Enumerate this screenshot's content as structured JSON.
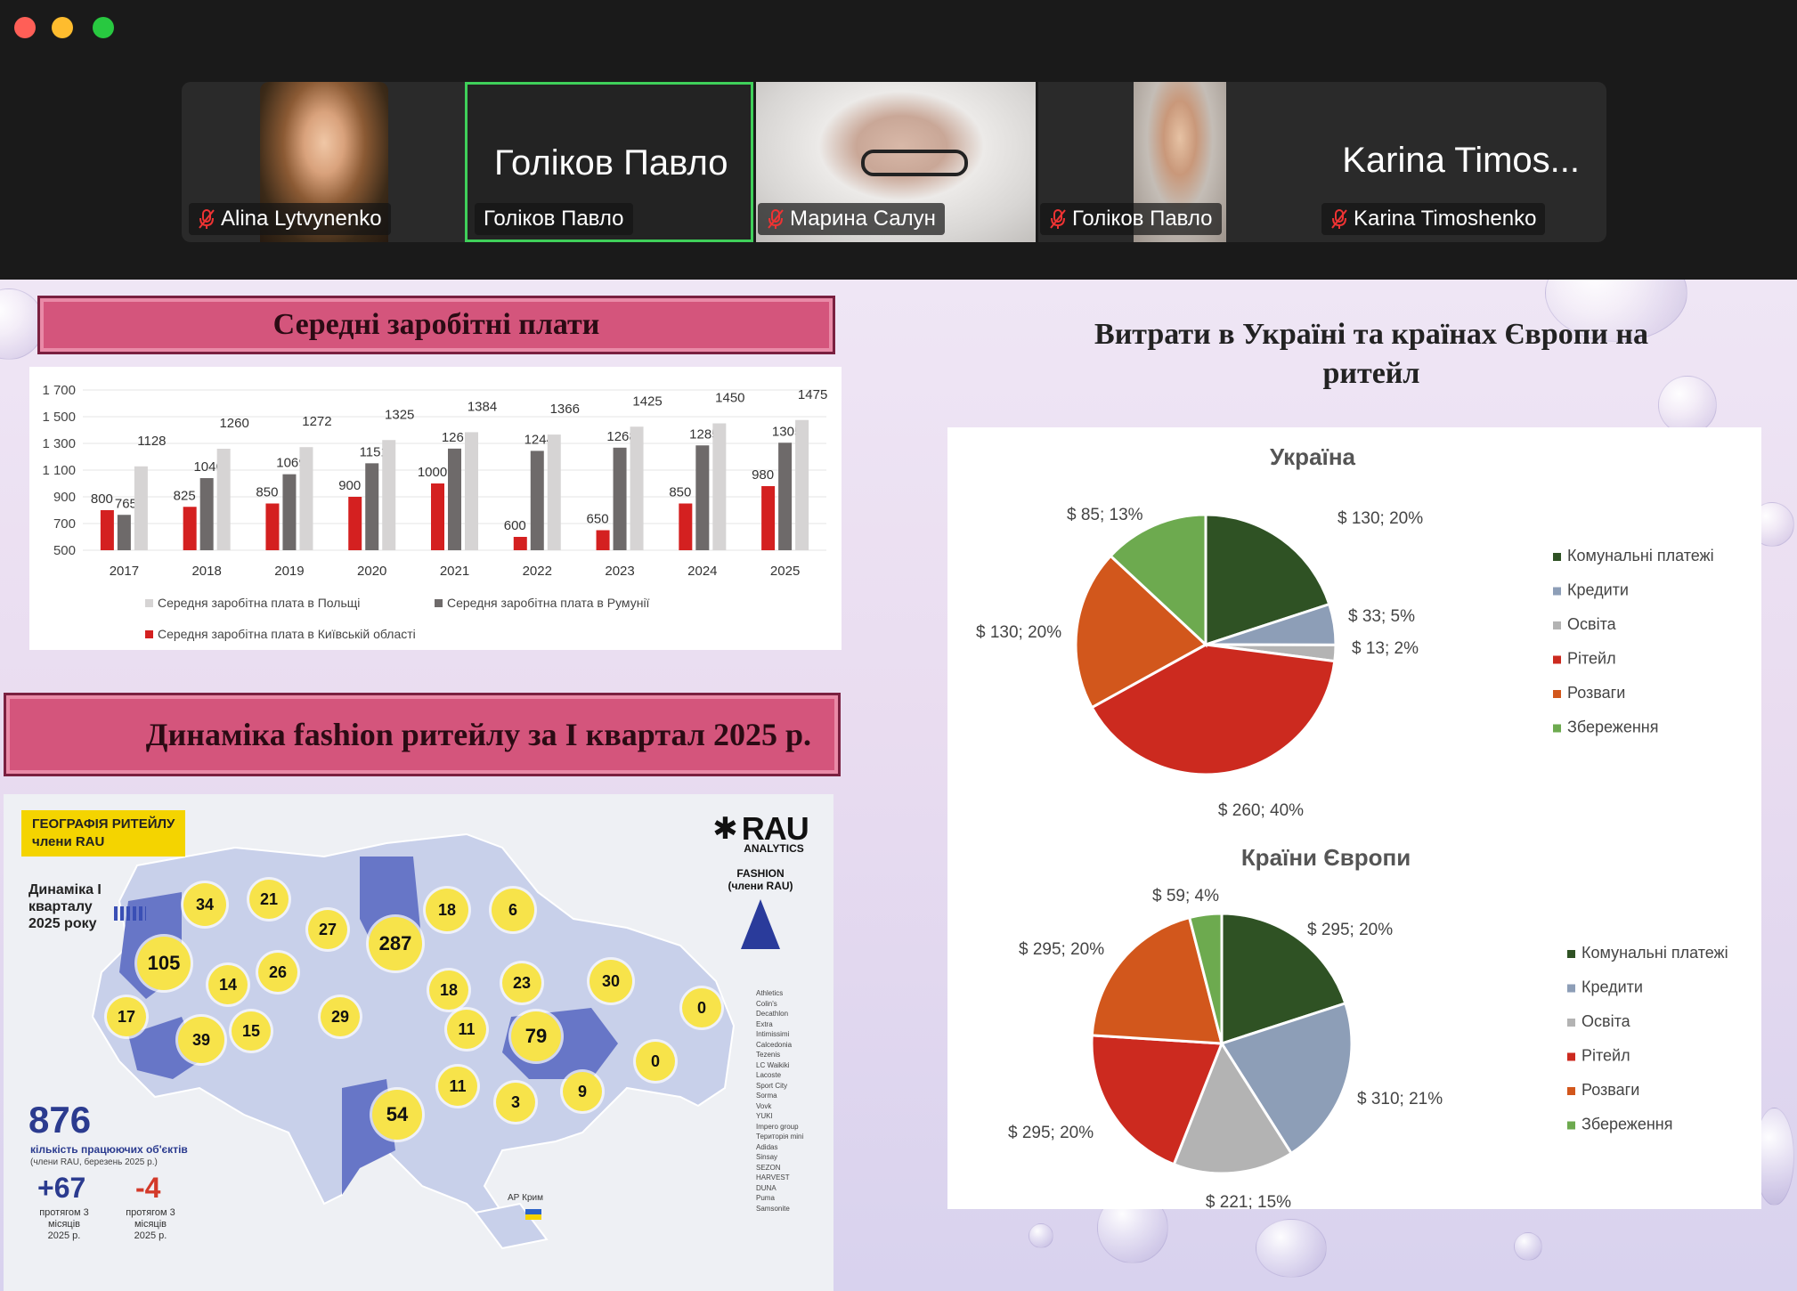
{
  "window": {
    "controls": {
      "close": "#ff5f57",
      "minimize": "#febc2e",
      "zoom": "#28c840"
    }
  },
  "participants": [
    {
      "name": "Alina Lytvynenko",
      "muted": true
    },
    {
      "name": "Голіков Павло",
      "muted": false,
      "active_speaker": true,
      "display_title": "Голіков Павло"
    },
    {
      "name": "Марина Салун",
      "muted": true
    },
    {
      "name": "Голіков Павло",
      "muted": true
    },
    {
      "name": "Karina Timoshenko",
      "muted": true,
      "display_title": "Karina Timos..."
    }
  ],
  "slide": {
    "salary_title": "Середні заробітні плати",
    "fashion_title": "Динаміка fashion ритейлу за І квартал 2025 р.",
    "retail_title": "Витрати в Україні та країнах Європи на ритейл"
  },
  "chart_data": [
    {
      "type": "bar",
      "title": "",
      "categories": [
        "2017",
        "2018",
        "2019",
        "2020",
        "2021",
        "2022",
        "2023",
        "2024",
        "2025"
      ],
      "series": [
        {
          "name": "Середня заробітна плата в Київській області",
          "color": "#d42020",
          "values": [
            800,
            825,
            850,
            900,
            1000,
            600,
            650,
            850,
            980
          ]
        },
        {
          "name": "Середня заробітна плата в Румунії",
          "color": "#6e6a6a",
          "values": [
            765,
            1040,
            1069,
            1151,
            1261,
            1244,
            1268,
            1285,
            1305
          ]
        },
        {
          "name": "Середня заробітна плата в Польщі",
          "color": "#d6d4d4",
          "values": [
            1128,
            1260,
            1272,
            1325,
            1384,
            1366,
            1425,
            1450,
            1475
          ]
        }
      ],
      "y_ticks": [
        "1 700",
        "1 500",
        "1 300",
        "1 100",
        "900",
        "700",
        "500"
      ],
      "ylim": [
        500,
        1700
      ],
      "legend_rows": [
        [
          "Середня заробітна плата в Польщі",
          "Середня заробітна плата в Румунії"
        ],
        [
          "Середня заробітна плата в Київській області"
        ]
      ]
    },
    {
      "type": "pie",
      "title": "Україна",
      "slices": [
        {
          "label": "Комунальні платежі",
          "value": 130,
          "pct": 20,
          "text": "$ 130; 20%",
          "color": "#2f5224"
        },
        {
          "label": "Кредити",
          "value": 33,
          "pct": 5,
          "text": "$ 33; 5%",
          "color": "#8d9eb7"
        },
        {
          "label": "Освіта",
          "value": 13,
          "pct": 2,
          "text": "$ 13; 2%",
          "color": "#b3b3b3"
        },
        {
          "label": "Рітейл",
          "value": 260,
          "pct": 40,
          "text": "$ 260; 40%",
          "color": "#cc2a1f"
        },
        {
          "label": "Розваги",
          "value": 130,
          "pct": 20,
          "text": "$ 130; 20%",
          "color": "#d2571c"
        },
        {
          "label": "Збереження",
          "value": 85,
          "pct": 13,
          "text": "$ 85; 13%",
          "color": "#6daa4f"
        }
      ]
    },
    {
      "type": "pie",
      "title": "Країни Європи",
      "slices": [
        {
          "label": "Комунальні платежі",
          "value": 295,
          "pct": 20,
          "text": "$ 295; 20%",
          "color": "#2f5224"
        },
        {
          "label": "Кредити",
          "value": 310,
          "pct": 21,
          "text": "$ 310; 21%",
          "color": "#8d9eb7"
        },
        {
          "label": "Освіта",
          "value": 221,
          "pct": 15,
          "text": "$ 221; 15%",
          "color": "#b3b3b3"
        },
        {
          "label": "Рітейл",
          "value": 295,
          "pct": 20,
          "text": "$ 295; 20%",
          "color": "#cc2a1f"
        },
        {
          "label": "Розваги",
          "value": 295,
          "pct": 20,
          "text": "$ 295; 20%",
          "color": "#d2571c"
        },
        {
          "label": "Збереження",
          "value": 59,
          "pct": 4,
          "text": "$ 59; 4%",
          "color": "#6daa4f"
        }
      ]
    }
  ],
  "map": {
    "badge_title": "ГЕОГРАФІЯ РИТЕЙЛУ",
    "badge_subtitle": "члени RAU",
    "brand": "RAU",
    "brand_sub": "ANALYTICS",
    "fashion_label": "FASHION",
    "fashion_sub": "(члени RAU)",
    "dynamics_label": "Динаміка І кварталу 2025 року",
    "total": "876",
    "total_caption": "кількість працюючих об'єктів",
    "total_note": "(члени RAU, березень 2025 р.)",
    "plus": "+67",
    "plus_caption": "протягом 3 місяців 2025 р.",
    "minus": "-4",
    "minus_caption": "протягом 3 місяців 2025 р.",
    "crimea": "АР Крим",
    "region_values": [
      "34",
      "21",
      "27",
      "287",
      "18",
      "6",
      "105",
      "14",
      "26",
      "18",
      "23",
      "30",
      "17",
      "39",
      "15",
      "29",
      "11",
      "79",
      "0",
      "0",
      "54",
      "11",
      "9",
      "3"
    ],
    "brands": [
      "Athletics",
      "Colin's",
      "Decathlon",
      "Extra",
      "Intimissimi",
      "Calcedonia",
      "Tezenis",
      "LC Waikiki",
      "Lacoste",
      "Sport City",
      "Sorma",
      "Vovk",
      "YUKI",
      "Impero group",
      "Територія mini",
      "Adidas",
      "Sinsay",
      "SEZON",
      "HARVEST",
      "DUNA",
      "Puma",
      "Samsonite"
    ]
  }
}
